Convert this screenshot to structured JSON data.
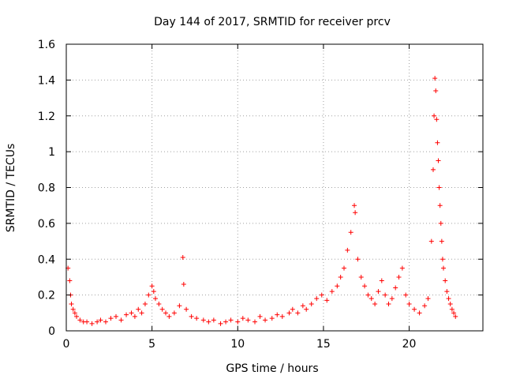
{
  "chart_data": {
    "type": "scatter",
    "title": "Day 144 of 2017, SRMTID for receiver prcv",
    "xlabel": "GPS time / hours",
    "ylabel": "SRMTID / TECUs",
    "xlim": [
      0,
      24.3
    ],
    "ylim": [
      0,
      1.6
    ],
    "xticks": [
      0,
      5,
      10,
      15,
      20
    ],
    "xtick_labels": [
      "0",
      "5",
      "10",
      "15",
      "20"
    ],
    "yticks": [
      0,
      0.2,
      0.4,
      0.6,
      0.8,
      1.0,
      1.2,
      1.4,
      1.6
    ],
    "ytick_labels": [
      "0",
      "0.2",
      "0.4",
      "0.6",
      "0.8",
      "1",
      "1.2",
      "1.4",
      "1.6"
    ],
    "grid": true,
    "marker": "+",
    "color": "#ff0000",
    "series": [
      {
        "name": "SRMTID",
        "x": [
          0.1,
          0.2,
          0.25,
          0.3,
          0.4,
          0.5,
          0.6,
          0.8,
          1.0,
          1.2,
          1.5,
          1.8,
          2.0,
          2.3,
          2.6,
          2.9,
          3.2,
          3.5,
          3.8,
          4.0,
          4.2,
          4.4,
          4.6,
          4.8,
          5.0,
          5.1,
          5.2,
          5.4,
          5.6,
          5.8,
          6.0,
          6.3,
          6.6,
          6.8,
          6.85,
          7.0,
          7.3,
          7.6,
          8.0,
          8.3,
          8.6,
          9.0,
          9.3,
          9.6,
          10.0,
          10.3,
          10.6,
          11.0,
          11.3,
          11.6,
          12.0,
          12.3,
          12.6,
          13.0,
          13.2,
          13.5,
          13.8,
          14.0,
          14.3,
          14.6,
          14.9,
          15.2,
          15.5,
          15.8,
          16.0,
          16.2,
          16.4,
          16.6,
          16.8,
          16.85,
          17.0,
          17.2,
          17.4,
          17.6,
          17.8,
          18.0,
          18.2,
          18.4,
          18.6,
          18.8,
          19.0,
          19.2,
          19.4,
          19.6,
          19.8,
          20.0,
          20.3,
          20.6,
          20.9,
          21.1,
          21.3,
          21.4,
          21.45,
          21.5,
          21.55,
          21.6,
          21.65,
          21.7,
          21.75,
          21.8,
          21.85,
          21.9,
          21.95,
          22.0,
          22.1,
          22.2,
          22.3,
          22.4,
          22.5,
          22.6,
          22.7
        ],
        "y": [
          0.35,
          0.28,
          0.2,
          0.15,
          0.12,
          0.1,
          0.08,
          0.06,
          0.05,
          0.05,
          0.04,
          0.05,
          0.06,
          0.05,
          0.07,
          0.08,
          0.06,
          0.09,
          0.1,
          0.08,
          0.12,
          0.1,
          0.15,
          0.2,
          0.25,
          0.22,
          0.18,
          0.15,
          0.12,
          0.1,
          0.08,
          0.1,
          0.14,
          0.41,
          0.26,
          0.12,
          0.08,
          0.07,
          0.06,
          0.05,
          0.06,
          0.04,
          0.05,
          0.06,
          0.05,
          0.07,
          0.06,
          0.05,
          0.08,
          0.06,
          0.07,
          0.09,
          0.08,
          0.1,
          0.12,
          0.1,
          0.14,
          0.12,
          0.15,
          0.18,
          0.2,
          0.17,
          0.22,
          0.25,
          0.3,
          0.35,
          0.45,
          0.55,
          0.7,
          0.66,
          0.4,
          0.3,
          0.25,
          0.2,
          0.18,
          0.15,
          0.22,
          0.28,
          0.2,
          0.15,
          0.18,
          0.24,
          0.3,
          0.35,
          0.2,
          0.15,
          0.12,
          0.1,
          0.14,
          0.18,
          0.5,
          0.9,
          1.2,
          1.41,
          1.34,
          1.18,
          1.05,
          0.95,
          0.8,
          0.7,
          0.6,
          0.5,
          0.4,
          0.35,
          0.28,
          0.22,
          0.18,
          0.15,
          0.12,
          0.1,
          0.08
        ]
      }
    ]
  }
}
